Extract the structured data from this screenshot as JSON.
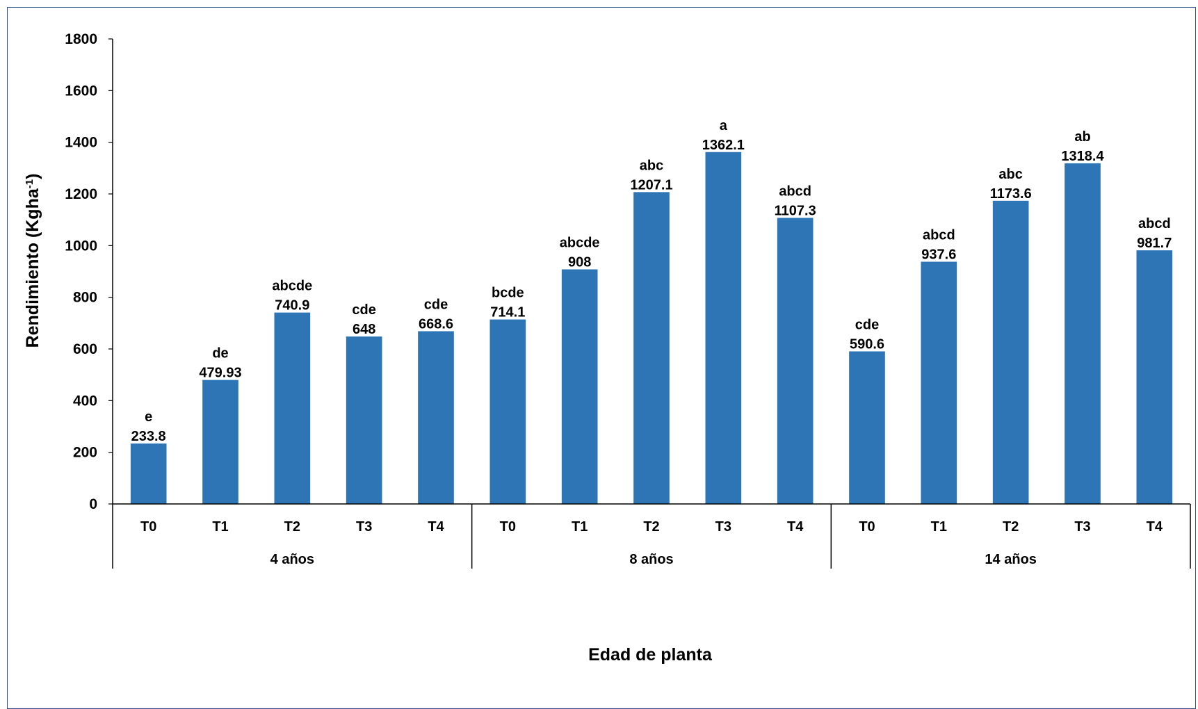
{
  "chart_data": {
    "type": "bar",
    "xlabel": "Edad de planta",
    "ylabel_main": "Rendimiento (Kgha",
    "ylabel_sup": "-1",
    "ylabel_close": ")",
    "ylim": [
      0,
      1800
    ],
    "yticks": [
      "0",
      "200",
      "400",
      "600",
      "800",
      "1000",
      "1200",
      "1400",
      "1600",
      "1800"
    ],
    "bar_color": "#2E75B6",
    "grid": false,
    "groups": [
      {
        "name": "4 años",
        "categories": [
          "T0",
          "T1",
          "T2",
          "T3",
          "T4"
        ],
        "values": [
          233.8,
          479.93,
          740.9,
          648,
          668.6
        ],
        "value_labels": [
          "233.8",
          "479.93",
          "740.9",
          "648",
          "668.6"
        ],
        "letters": [
          "e",
          "de",
          "abcde",
          "cde",
          "cde"
        ]
      },
      {
        "name": "8 años",
        "categories": [
          "T0",
          "T1",
          "T2",
          "T3",
          "T4"
        ],
        "values": [
          714.1,
          908,
          1207.1,
          1362.1,
          1107.3
        ],
        "value_labels": [
          "714.1",
          "908",
          "1207.1",
          "1362.1",
          "1107.3"
        ],
        "letters": [
          "bcde",
          "abcde",
          "abc",
          "a",
          "abcd"
        ]
      },
      {
        "name": "14 años",
        "categories": [
          "T0",
          "T1",
          "T2",
          "T3",
          "T4"
        ],
        "values": [
          590.6,
          937.6,
          1173.6,
          1318.4,
          981.7
        ],
        "value_labels": [
          "590.6",
          "937.6",
          "1173.6",
          "1318.4",
          "981.7"
        ],
        "letters": [
          "cde",
          "abcd",
          "abc",
          "ab",
          "abcd"
        ]
      }
    ]
  }
}
